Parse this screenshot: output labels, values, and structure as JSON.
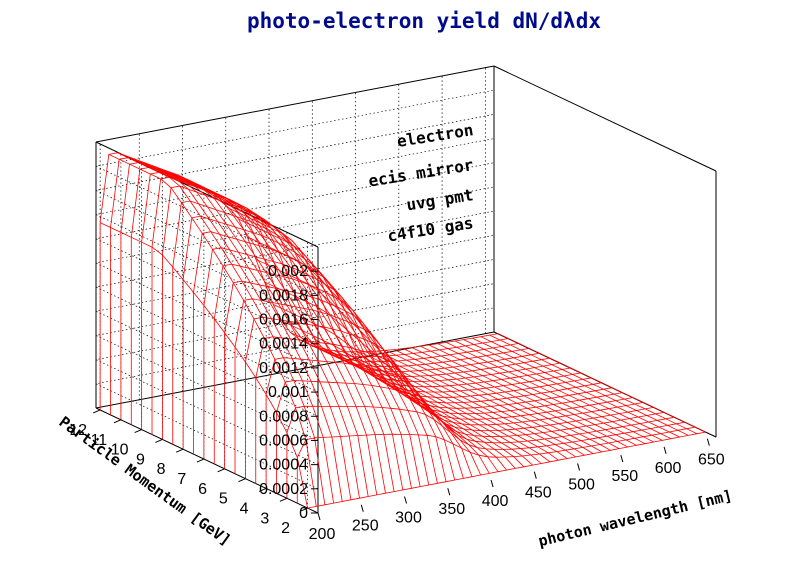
{
  "chart_data": {
    "type": "surface",
    "title": "photo-electron yield dN/dλdx",
    "xlabel": "photon wavelength [nm]",
    "ylabel": "Particle Momentum [GeV]",
    "zlabel": "",
    "annotations": [
      "electron",
      "ecis mirror",
      "uvg pmt",
      "c4f10 gas"
    ],
    "x_ticks": [
      200,
      250,
      300,
      350,
      400,
      450,
      500,
      550,
      600,
      650
    ],
    "y_ticks": [
      2,
      3,
      4,
      5,
      6,
      7,
      8,
      9,
      10,
      11,
      12
    ],
    "z_ticks": [
      "0",
      "0.0002",
      "0.0004",
      "0.0006",
      "0.0008",
      "0.001",
      "0.0012",
      "0.0014",
      "0.0016",
      "0.0018",
      "0.002"
    ],
    "xlim": [
      200,
      660
    ],
    "ylim": [
      1.5,
      12.2
    ],
    "zlim": [
      0,
      0.0022
    ],
    "profile_wavelength_nm": [
      200,
      205,
      210,
      215,
      220,
      225,
      230,
      240,
      250,
      260,
      270,
      280,
      290,
      300,
      310,
      320,
      330,
      340,
      350,
      360,
      370,
      380,
      390,
      400,
      410,
      420,
      430,
      440,
      450,
      460,
      480,
      500,
      520,
      540,
      560,
      580,
      600,
      620,
      640,
      660
    ],
    "profile_yield": [
      0.00155,
      0.00205,
      0.0021,
      0.0021,
      0.0021,
      0.00208,
      0.00206,
      0.00202,
      0.00198,
      0.00194,
      0.0019,
      0.00186,
      0.00182,
      0.00177,
      0.00172,
      0.00166,
      0.0016,
      0.00153,
      0.00146,
      0.00136,
      0.0012,
      0.001,
      0.0008,
      0.0006,
      0.00045,
      0.00034,
      0.00027,
      0.00022,
      0.00018,
      0.000145,
      0.0001,
      7e-05,
      5e-05,
      3.5e-05,
      2.5e-05,
      1.8e-05,
      1.2e-05,
      8e-06,
      5e-06,
      3e-06
    ],
    "momentum_threshold_GeV": 2.0,
    "momentum_saturation_GeV": 9.2,
    "grid": true,
    "mesh_color": "#ff0000",
    "title_color": "#000b8c"
  }
}
